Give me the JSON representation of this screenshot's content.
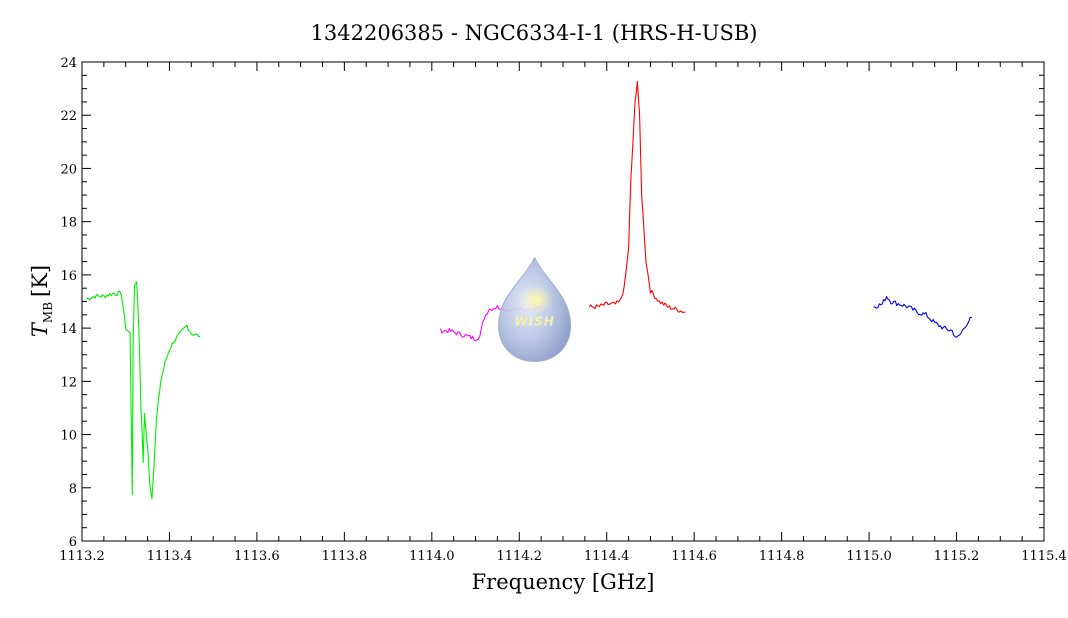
{
  "chart_data": {
    "type": "line",
    "title": "1342206385 - NGC6334-I-1 (HRS-H-USB)",
    "xlabel": "Frequency [GHz]",
    "ylabel": {
      "main": "T",
      "sub": "MB",
      "unit": "[K]"
    },
    "xlim": [
      1113.2,
      1115.4
    ],
    "ylim": [
      6,
      24
    ],
    "x_ticks": [
      1113.2,
      1113.4,
      1113.6,
      1113.8,
      1114.0,
      1114.2,
      1114.4,
      1114.6,
      1114.8,
      1115.0,
      1115.2,
      1115.4
    ],
    "x_tick_labels": [
      "1113.2",
      "1113.4",
      "1113.6",
      "1113.8",
      "1114.0",
      "1114.2",
      "1114.4",
      "1114.6",
      "1114.8",
      "1115.0",
      "1115.2",
      "1115.4"
    ],
    "y_ticks": [
      6,
      8,
      10,
      12,
      14,
      16,
      18,
      20,
      22,
      24
    ],
    "y_tick_labels": [
      "6",
      "8",
      "10",
      "12",
      "14",
      "16",
      "18",
      "20",
      "22",
      "24"
    ],
    "grid": false,
    "logo": {
      "text": "WISH"
    },
    "series": [
      {
        "color": "#00ee00",
        "x": [
          1113.21,
          1113.23,
          1113.25,
          1113.27,
          1113.29,
          1113.3,
          1113.31,
          1113.315,
          1113.317,
          1113.32,
          1113.325,
          1113.33,
          1113.335,
          1113.34,
          1113.343,
          1113.347,
          1113.35,
          1113.355,
          1113.36,
          1113.365,
          1113.37,
          1113.375,
          1113.38,
          1113.39,
          1113.4,
          1113.41,
          1113.42,
          1113.43,
          1113.44,
          1113.45,
          1113.47
        ],
        "y": [
          15.1,
          15.2,
          15.2,
          15.3,
          15.3,
          14.0,
          13.8,
          7.8,
          13.5,
          15.6,
          15.8,
          14.0,
          11.0,
          9.0,
          10.8,
          10.0,
          9.5,
          8.2,
          7.6,
          9.0,
          10.5,
          11.3,
          12.0,
          12.7,
          13.2,
          13.5,
          13.7,
          13.9,
          14.1,
          13.8,
          13.7
        ]
      },
      {
        "color": "#ff00ff",
        "x": [
          1114.02,
          1114.04,
          1114.06,
          1114.08,
          1114.1,
          1114.11,
          1114.12,
          1114.13,
          1114.15,
          1114.17,
          1114.2,
          1114.22,
          1114.25
        ],
        "y": [
          13.9,
          13.9,
          13.8,
          13.7,
          13.6,
          13.7,
          14.4,
          14.7,
          14.8,
          14.7,
          14.7,
          14.7,
          14.8
        ]
      },
      {
        "color": "#ff0000",
        "x": [
          1114.36,
          1114.38,
          1114.4,
          1114.42,
          1114.43,
          1114.44,
          1114.45,
          1114.455,
          1114.46,
          1114.465,
          1114.47,
          1114.475,
          1114.48,
          1114.49,
          1114.5,
          1114.52,
          1114.54,
          1114.56,
          1114.58
        ],
        "y": [
          14.8,
          14.8,
          14.9,
          14.9,
          15.0,
          15.5,
          17.0,
          19.5,
          21.0,
          22.5,
          23.3,
          22.0,
          19.0,
          16.5,
          15.4,
          15.0,
          14.8,
          14.7,
          14.6
        ]
      },
      {
        "color": "#0000ee",
        "x": [
          1115.01,
          1115.03,
          1115.04,
          1115.05,
          1115.07,
          1115.09,
          1115.11,
          1115.13,
          1115.15,
          1115.17,
          1115.19,
          1115.2,
          1115.21,
          1115.22,
          1115.235
        ],
        "y": [
          14.8,
          14.9,
          15.2,
          15.0,
          14.9,
          14.8,
          14.6,
          14.5,
          14.2,
          14.0,
          13.9,
          13.6,
          13.8,
          14.1,
          14.4
        ]
      }
    ]
  }
}
